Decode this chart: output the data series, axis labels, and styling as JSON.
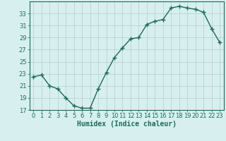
{
  "x": [
    0,
    1,
    2,
    3,
    4,
    5,
    6,
    7,
    8,
    9,
    10,
    11,
    12,
    13,
    14,
    15,
    16,
    17,
    18,
    19,
    20,
    21,
    22,
    23
  ],
  "y": [
    22.5,
    22.8,
    21.0,
    20.5,
    19.0,
    17.7,
    17.3,
    17.3,
    20.5,
    23.2,
    25.7,
    27.3,
    28.8,
    29.0,
    31.2,
    31.7,
    32.0,
    33.9,
    34.2,
    33.9,
    33.7,
    33.2,
    30.5,
    28.2
  ],
  "xlabel": "Humidex (Indice chaleur)",
  "ylim": [
    17,
    35
  ],
  "xlim_min": -0.5,
  "xlim_max": 23.5,
  "yticks": [
    17,
    19,
    21,
    23,
    25,
    27,
    29,
    31,
    33
  ],
  "xticks": [
    0,
    1,
    2,
    3,
    4,
    5,
    6,
    7,
    8,
    9,
    10,
    11,
    12,
    13,
    14,
    15,
    16,
    17,
    18,
    19,
    20,
    21,
    22,
    23
  ],
  "xtick_labels": [
    "0",
    "1",
    "2",
    "3",
    "4",
    "5",
    "6",
    "7",
    "8",
    "9",
    "10",
    "11",
    "12",
    "13",
    "14",
    "15",
    "16",
    "17",
    "18",
    "19",
    "20",
    "21",
    "22",
    "23"
  ],
  "line_color": "#1a6b5a",
  "marker": "+",
  "marker_size": 4,
  "line_width": 1.0,
  "bg_color": "#d8eff0",
  "grid_color": "#aecfd2",
  "axis_color": "#1a6b5a",
  "label_fontsize": 7,
  "tick_fontsize": 6
}
